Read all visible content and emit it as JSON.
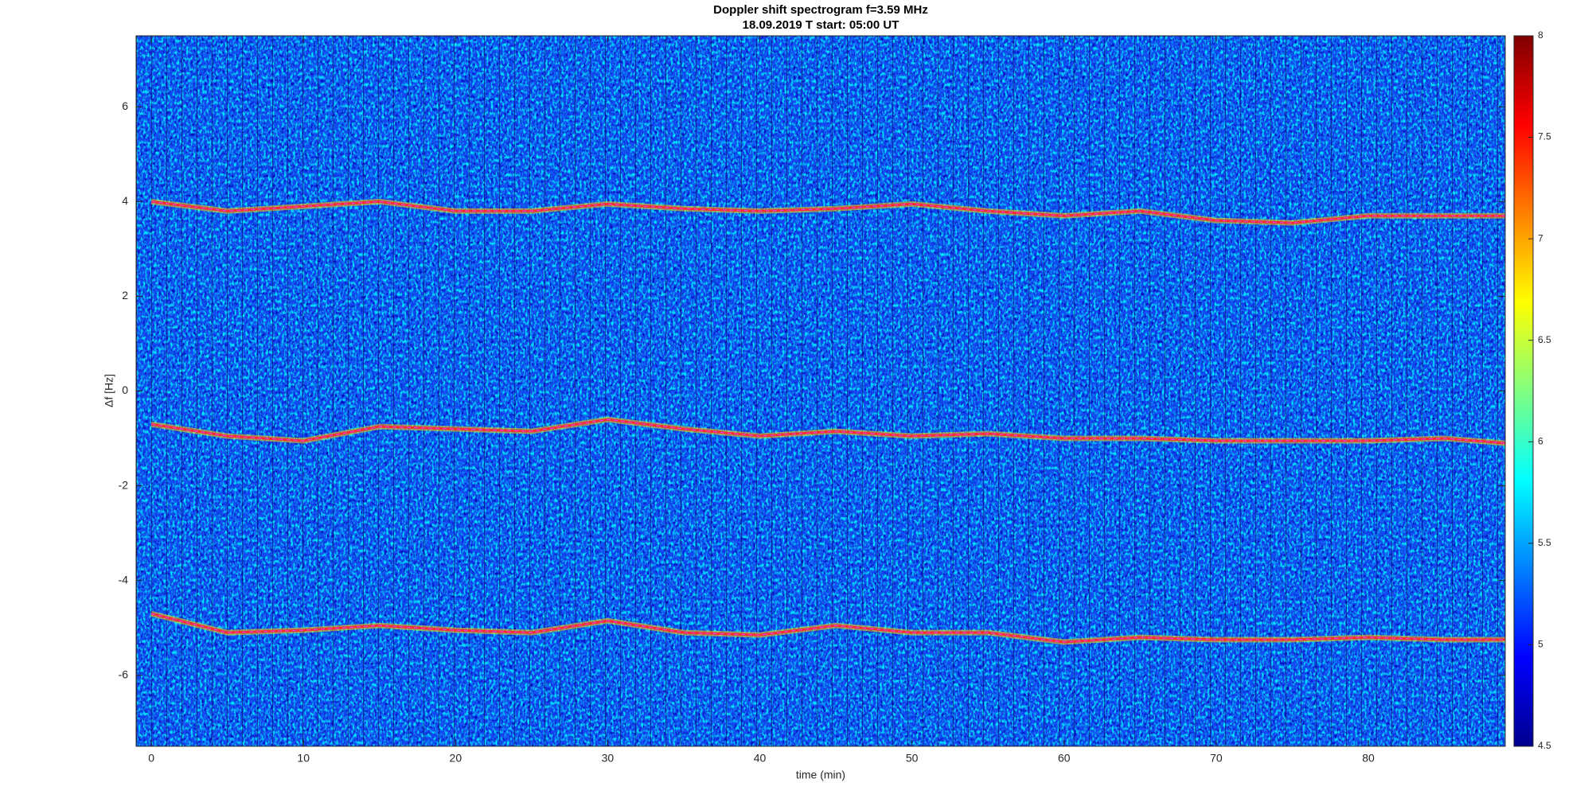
{
  "chart_data": {
    "type": "spectrogram",
    "title": "Doppler shift spectrogram f=3.59 MHz",
    "subtitle": "18.09.2019   T start: 05:00 UT",
    "x_label": "time (min)",
    "y_label": "Δf [Hz]",
    "xlim": [
      -1,
      89
    ],
    "xticks": [
      0,
      10,
      20,
      30,
      40,
      50,
      60,
      70,
      80
    ],
    "ylim": [
      -7.5,
      7.5
    ],
    "yticks": [
      -6,
      -4,
      -2,
      0,
      2,
      4,
      6
    ],
    "x": [
      0,
      5,
      10,
      15,
      20,
      25,
      30,
      35,
      40,
      45,
      50,
      55,
      60,
      65,
      70,
      75,
      80,
      85,
      89
    ],
    "series": [
      {
        "color": "#ff2a2a",
        "values": [
          4.0,
          3.8,
          3.9,
          4.0,
          3.8,
          3.8,
          3.95,
          3.85,
          3.8,
          3.85,
          3.95,
          3.8,
          3.7,
          3.8,
          3.6,
          3.55,
          3.7,
          3.7,
          3.7
        ]
      },
      {
        "color": "#ff2a2a",
        "values": [
          -0.7,
          -0.95,
          -1.05,
          -0.75,
          -0.8,
          -0.85,
          -0.6,
          -0.8,
          -0.95,
          -0.85,
          -0.95,
          -0.9,
          -1.0,
          -1.0,
          -1.05,
          -1.05,
          -1.05,
          -1.0,
          -1.1
        ]
      },
      {
        "color": "#ff2a2a",
        "values": [
          -4.7,
          -5.1,
          -5.05,
          -4.95,
          -5.05,
          -5.1,
          -4.85,
          -5.1,
          -5.15,
          -4.95,
          -5.1,
          -5.1,
          -5.3,
          -5.2,
          -5.25,
          -5.25,
          -5.2,
          -5.25,
          -5.25
        ]
      }
    ],
    "colormap": [
      "#00008f",
      "#0000ff",
      "#0080ff",
      "#00ffff",
      "#80ff80",
      "#ffff00",
      "#ff8000",
      "#ff0000",
      "#800000"
    ],
    "clim": [
      4.5,
      8
    ],
    "cticks": [
      4.5,
      5,
      5.5,
      6,
      6.5,
      7,
      7.5,
      8
    ]
  }
}
